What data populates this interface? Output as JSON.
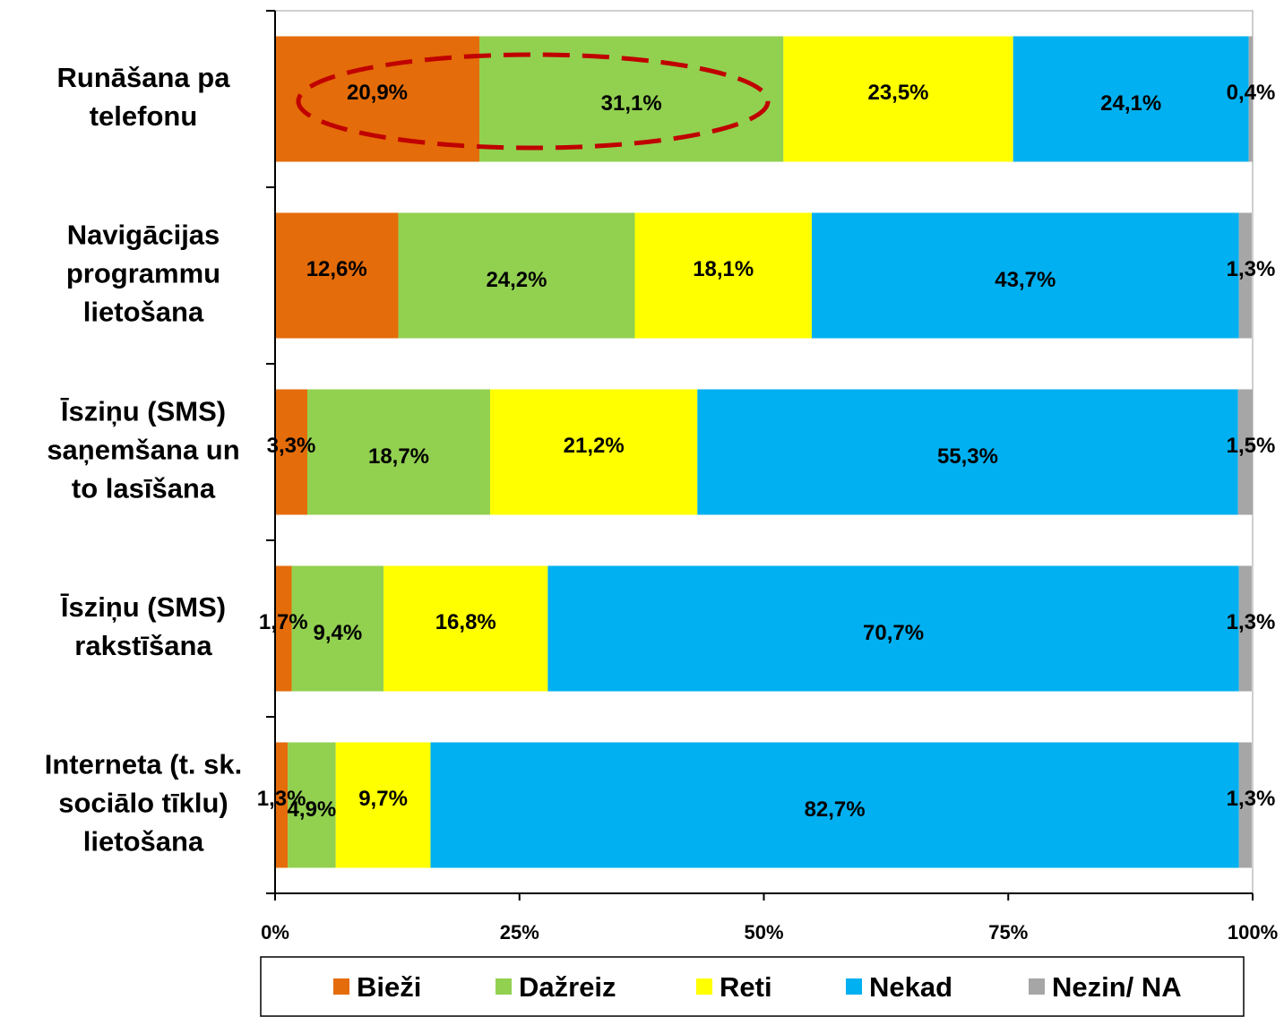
{
  "chart_data": {
    "type": "stacked-bar-horizontal",
    "categories": [
      [
        "Runāšana pa",
        "telefonu"
      ],
      [
        "Navigācijas",
        "programmu",
        "lietošana"
      ],
      [
        "Īsziņu  (SMS)",
        "saņemšana un",
        "to  lasīšana"
      ],
      [
        "Īsziņu (SMS)",
        "rakstīšana"
      ],
      [
        "Interneta (t. sk.",
        "sociālo tīklu)",
        "lietošana"
      ]
    ],
    "series": [
      {
        "name": "Bieži",
        "color": "#e46c0a",
        "values": [
          20.9,
          12.6,
          3.3,
          1.7,
          1.3
        ],
        "value_labels": [
          "20,9%",
          "12,6%",
          "3,3%",
          "1,7%",
          "1,3%"
        ]
      },
      {
        "name": "Dažreiz",
        "color": "#92d050",
        "values": [
          31.1,
          24.2,
          18.7,
          9.4,
          4.9
        ],
        "value_labels": [
          "31,1%",
          "24,2%",
          "18,7%",
          "9,4%",
          "4,9%"
        ]
      },
      {
        "name": "Reti",
        "color": "#ffff00",
        "values": [
          23.5,
          18.1,
          21.2,
          16.8,
          9.7
        ],
        "value_labels": [
          "23,5%",
          "18,1%",
          "21,2%",
          "16,8%",
          "9,7%"
        ]
      },
      {
        "name": "Nekad",
        "color": "#00b0f0",
        "values": [
          24.1,
          43.7,
          55.3,
          70.7,
          82.7
        ],
        "value_labels": [
          "24,1%",
          "43,7%",
          "55,3%",
          "70,7%",
          "82,7%"
        ]
      },
      {
        "name": "Nezin/ NA",
        "color": "#a6a6a6",
        "values": [
          0.4,
          1.3,
          1.5,
          1.3,
          1.3
        ],
        "value_labels": [
          "0,4%",
          "1,3%",
          "1,5%",
          "1,3%",
          "1,3%"
        ]
      }
    ],
    "xlim": [
      0,
      100
    ],
    "xticks": [
      {
        "value": 0,
        "label": "0%"
      },
      {
        "value": 25,
        "label": "25%"
      },
      {
        "value": 50,
        "label": "50%"
      },
      {
        "value": 75,
        "label": "75%"
      },
      {
        "value": 100,
        "label": "100%"
      }
    ],
    "legend": "bottom"
  }
}
